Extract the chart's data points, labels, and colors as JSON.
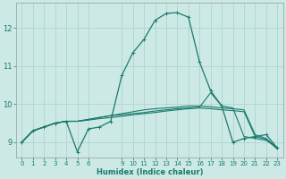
{
  "xlabel": "Humidex (Indice chaleur)",
  "bg_color": "#cce9e5",
  "grid_color": "#afd4cf",
  "line_color": "#1a7a6e",
  "xlim": [
    -0.5,
    23.5
  ],
  "ylim": [
    8.6,
    12.65
  ],
  "xticks": [
    0,
    1,
    2,
    3,
    4,
    5,
    6,
    9,
    10,
    11,
    12,
    13,
    14,
    15,
    16,
    17,
    18,
    19,
    20,
    21,
    22,
    23
  ],
  "yticks": [
    9,
    10,
    11,
    12
  ],
  "series": [
    [
      9.0,
      9.3,
      9.4,
      9.5,
      9.55,
      8.75,
      9.35,
      9.4,
      9.55,
      10.75,
      11.35,
      11.7,
      12.2,
      12.38,
      12.4,
      12.28,
      11.1,
      10.35,
      9.95,
      9.0,
      9.1,
      9.15,
      9.2,
      8.85
    ],
    [
      9.0,
      9.3,
      9.4,
      9.5,
      9.55,
      9.55,
      9.6,
      9.65,
      9.7,
      9.75,
      9.8,
      9.85,
      9.88,
      9.9,
      9.92,
      9.95,
      9.95,
      9.93,
      9.9,
      9.88,
      9.85,
      9.2,
      9.1,
      8.85
    ],
    [
      9.0,
      9.3,
      9.4,
      9.5,
      9.55,
      9.55,
      9.6,
      9.65,
      9.7,
      9.72,
      9.75,
      9.78,
      9.82,
      9.85,
      9.88,
      9.9,
      9.92,
      10.3,
      9.95,
      9.9,
      9.15,
      9.1,
      9.05,
      8.85
    ],
    [
      9.0,
      9.3,
      9.4,
      9.5,
      9.55,
      9.55,
      9.58,
      9.62,
      9.65,
      9.68,
      9.72,
      9.75,
      9.78,
      9.82,
      9.85,
      9.88,
      9.9,
      9.88,
      9.85,
      9.83,
      9.8,
      9.15,
      9.08,
      8.82
    ]
  ]
}
